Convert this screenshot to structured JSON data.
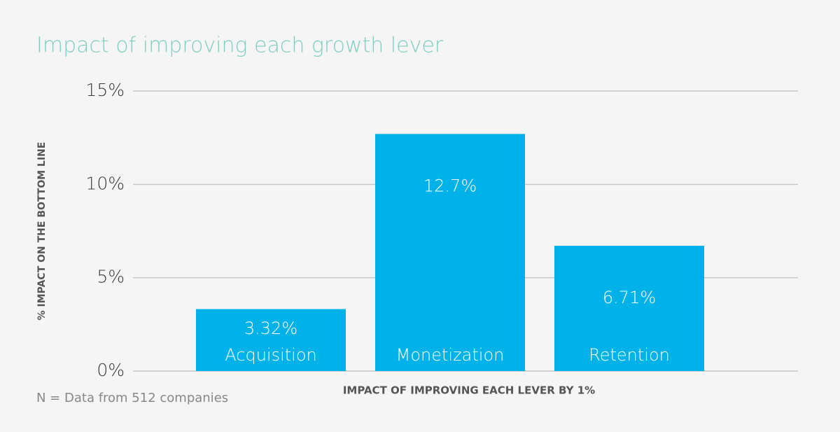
{
  "chart_data": {
    "type": "bar",
    "title": "Impact of improving each growth lever",
    "y_label": "% IMPACT ON THE BOTTOM LINE",
    "x_label": "IMPACT OF IMPROVING EACH LEVER BY 1%",
    "note": "N = Data from 512 companies",
    "categories": [
      "Acquisition",
      "Monetization",
      "Retention"
    ],
    "values": [
      3.32,
      12.7,
      6.71
    ],
    "value_labels": [
      "3.32%",
      "12.7%",
      "6.71%"
    ],
    "color": "#00b2e8",
    "ylim": [
      0,
      15
    ],
    "yticks": [
      {
        "value": 0,
        "label": "0%"
      },
      {
        "value": 5,
        "label": "5%"
      },
      {
        "value": 10,
        "label": "10%"
      },
      {
        "value": 15,
        "label": "15%"
      }
    ],
    "grid": true
  }
}
